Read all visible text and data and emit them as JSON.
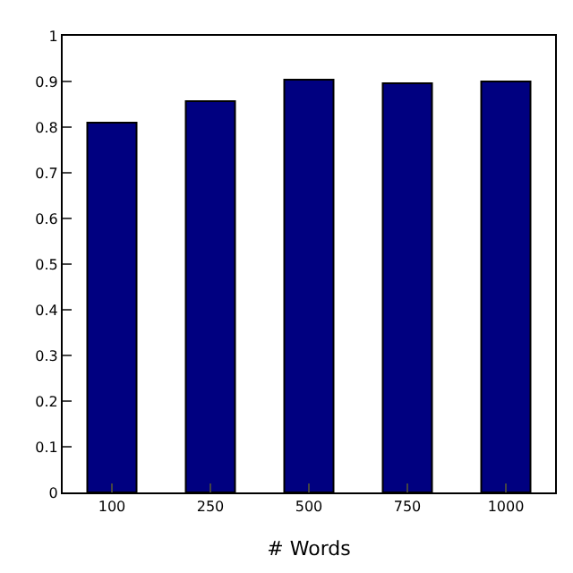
{
  "chart_data": {
    "type": "bar",
    "xlabel": "# Words",
    "categories": [
      "100",
      "250",
      "500",
      "750",
      "1000"
    ],
    "series": [
      {
        "color": "#000080",
        "values": [
          0.81,
          0.857,
          0.904,
          0.896,
          0.9
        ]
      }
    ],
    "ylim": [
      0,
      1
    ],
    "yticks": [
      0,
      0.1,
      0.2,
      0.3,
      0.4,
      0.5,
      0.6,
      0.7,
      0.8,
      0.9,
      1
    ]
  }
}
